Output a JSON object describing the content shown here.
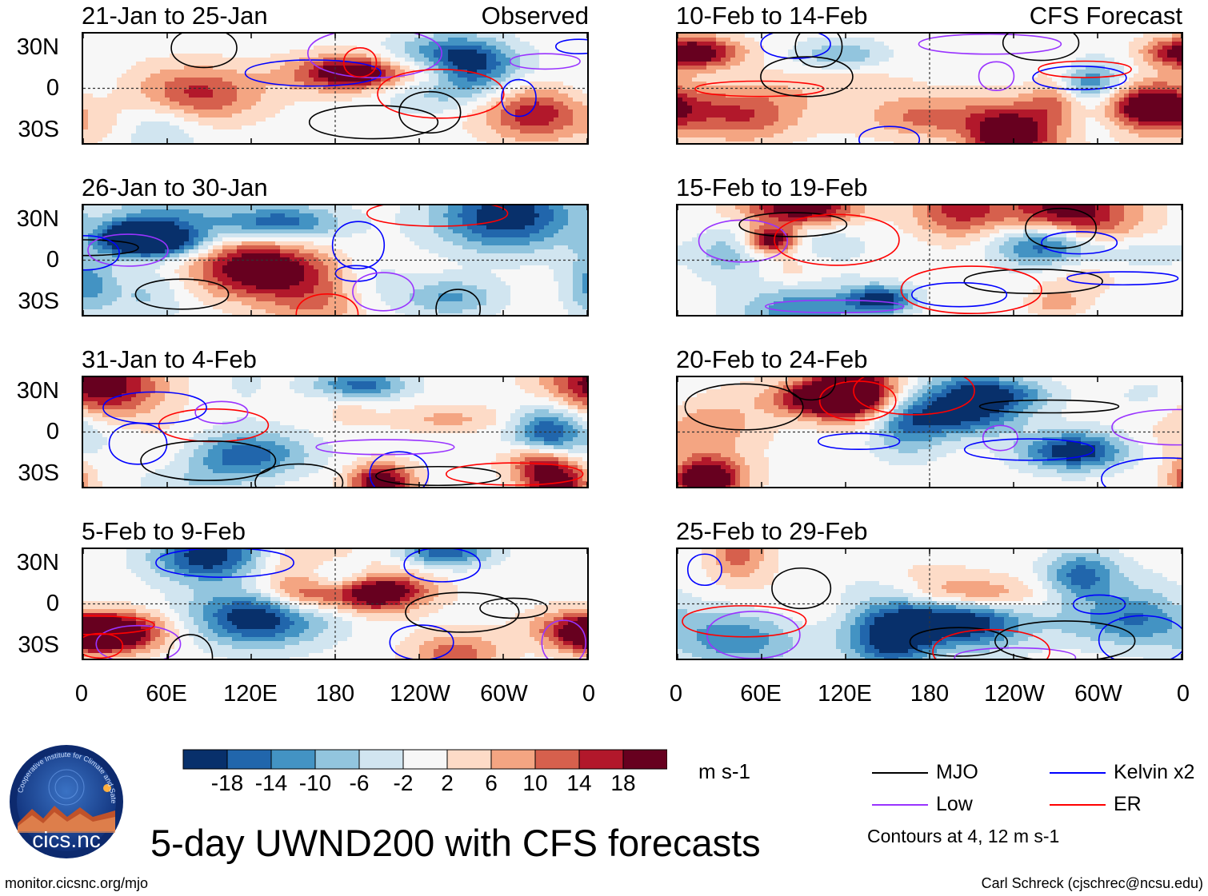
{
  "title": "5-day UWND200 with CFS forecasts",
  "footer": {
    "left": "monitor.cicsnc.org/mjo",
    "right": "Carl Schreck (cjschrec@ncsu.edu)"
  },
  "logo": {
    "name": "cics.nc",
    "ring_text": "Cooperative Institute for Climate and Satellites"
  },
  "lat_labels": [
    "30N",
    "0",
    "30S"
  ],
  "lon_labels": [
    "0",
    "60E",
    "120E",
    "180",
    "120W",
    "60W",
    "0"
  ],
  "tags": {
    "observed": "Observed",
    "forecast": "CFS Forecast"
  },
  "panels_left": [
    {
      "title": "21-Jan to 25-Jan"
    },
    {
      "title": "26-Jan to 30-Jan"
    },
    {
      "title": "31-Jan to 4-Feb"
    },
    {
      "title": "5-Feb to 9-Feb"
    }
  ],
  "panels_right": [
    {
      "title": "10-Feb to 14-Feb"
    },
    {
      "title": "15-Feb to 19-Feb"
    },
    {
      "title": "20-Feb to 24-Feb"
    },
    {
      "title": "25-Feb to 29-Feb"
    }
  ],
  "colorbar": {
    "units": "m s-1",
    "labels": [
      "-18",
      "-14",
      "-10",
      "-6",
      "-2",
      "2",
      "6",
      "10",
      "14",
      "18"
    ],
    "colors": [
      "#08306b",
      "#2166ac",
      "#4393c3",
      "#92c5de",
      "#d1e5f0",
      "#f7f7f7",
      "#fddbc7",
      "#f4a582",
      "#d6604d",
      "#b2182b",
      "#67001f"
    ]
  },
  "legend": {
    "items": [
      {
        "label": "MJO",
        "color": "#000000"
      },
      {
        "label": "Kelvin x2",
        "color": "#0000ff"
      },
      {
        "label": "Low",
        "color": "#9933ff"
      },
      {
        "label": "ER",
        "color": "#ff0000"
      }
    ],
    "note": "Contours at 4, 12 m s-1"
  },
  "chart_data": {
    "type": "heatmap",
    "variable": "UWND200",
    "units": "m s-1",
    "x_ticks": [
      "0",
      "60E",
      "120E",
      "180",
      "120W",
      "60W",
      "0"
    ],
    "y_ticks": [
      "30N",
      "0",
      "30S"
    ],
    "color_levels": [
      -18,
      -14,
      -10,
      -6,
      -2,
      2,
      6,
      10,
      14,
      18
    ],
    "contour_levels": [
      4,
      12
    ],
    "contour_series": [
      "MJO",
      "Kelvin x2",
      "Low",
      "ER"
    ],
    "panels": [
      {
        "title": "21-Jan to 25-Jan",
        "kind": "Observed"
      },
      {
        "title": "26-Jan to 30-Jan",
        "kind": "Observed"
      },
      {
        "title": "31-Jan to 4-Feb",
        "kind": "Observed"
      },
      {
        "title": "5-Feb to 9-Feb",
        "kind": "Observed"
      },
      {
        "title": "10-Feb to 14-Feb",
        "kind": "CFS Forecast"
      },
      {
        "title": "15-Feb to 19-Feb",
        "kind": "CFS Forecast"
      },
      {
        "title": "20-Feb to 24-Feb",
        "kind": "CFS Forecast"
      },
      {
        "title": "25-Feb to 29-Feb",
        "kind": "CFS Forecast"
      }
    ]
  }
}
